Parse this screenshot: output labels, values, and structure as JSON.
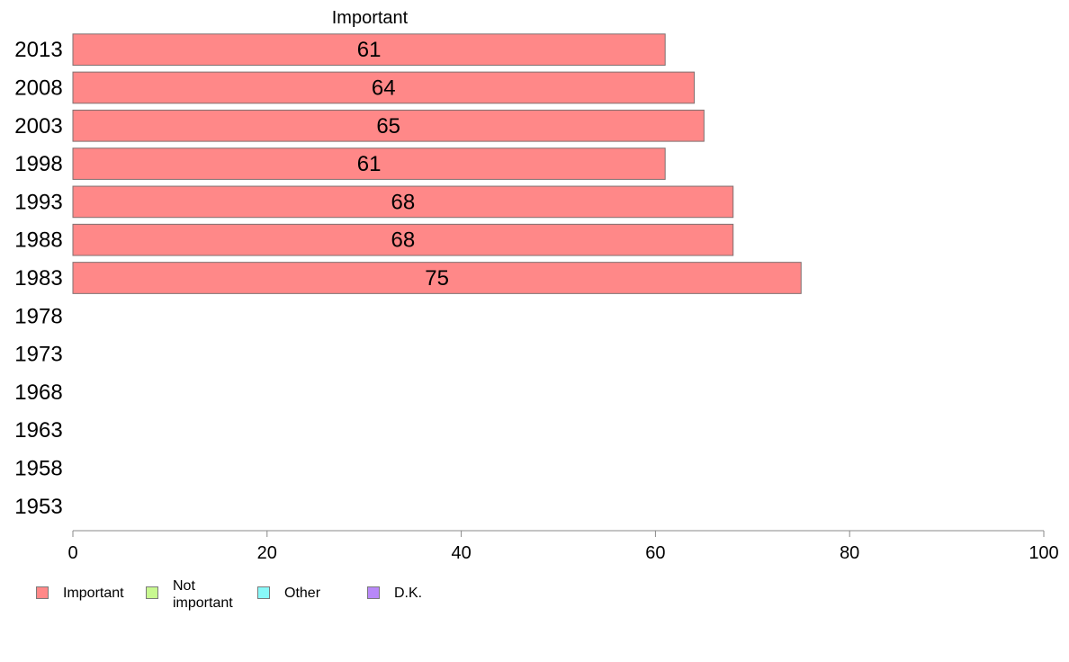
{
  "chart_data": {
    "type": "bar",
    "orientation": "horizontal",
    "title": "Important",
    "categories": [
      "2013",
      "2008",
      "2003",
      "1998",
      "1993",
      "1988",
      "1983",
      "1978",
      "1973",
      "1968",
      "1963",
      "1958",
      "1953"
    ],
    "series": [
      {
        "name": "Important",
        "values": [
          61,
          64,
          65,
          61,
          68,
          68,
          75,
          null,
          null,
          null,
          null,
          null,
          null
        ],
        "color": "#ff8888"
      }
    ],
    "xlim": [
      0,
      100
    ],
    "xticks": [
      "0",
      "20",
      "40",
      "60",
      "80",
      "100"
    ],
    "grid": false,
    "legend_position": "bottom-left",
    "legend": [
      {
        "label": "Important",
        "color": "#ff8888"
      },
      {
        "label": "Not\nimportant",
        "color": "#c8f890"
      },
      {
        "label": "Other",
        "color": "#88f8f8"
      },
      {
        "label": "D.K.",
        "color": "#b888f8"
      }
    ]
  }
}
